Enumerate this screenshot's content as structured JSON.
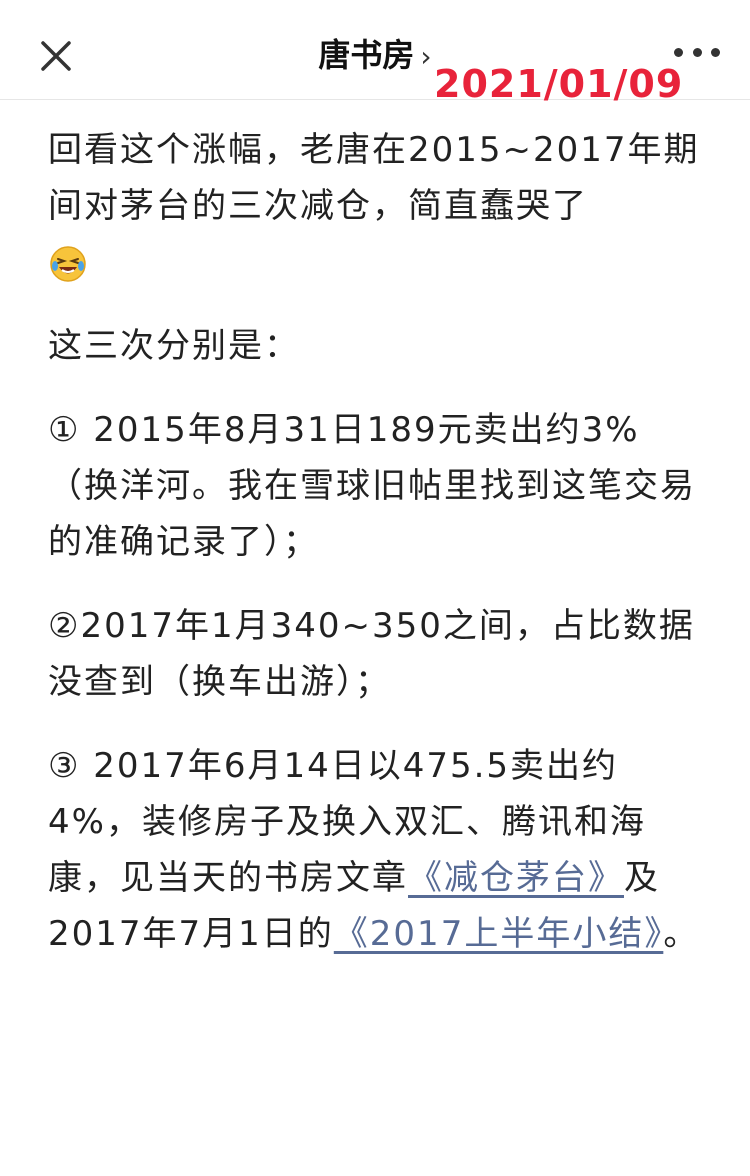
{
  "navbar": {
    "title": "唐书房",
    "chevron": "›",
    "close_icon": "close-icon",
    "more_icon": "more-dots-icon"
  },
  "date_stamp": "2021/01/09",
  "article": {
    "para1": "回看这个涨幅，老唐在2015~2017年期间对茅台的三次减仓，简直蠢哭了",
    "para1_emoji": "laughing-crying-face-icon",
    "para2": "这三次分别是：",
    "para3": "① 2015年8月31日189元卖出约3%（换洋河。我在雪球旧帖里找到这笔交易的准确记录了）；",
    "para4": "②2017年1月340~350之间，占比数据没查到（换车出游）；",
    "para5_text": "③ 2017年6月14日以475.5卖出约4%，装修房子及换入双汇、腾讯和海康，见当天的书房文章",
    "para5_link1": "《减仓茅台》",
    "para5_mid": "及2017年7月1日的",
    "para5_link2": "《2017上半年小结》",
    "para5_end": "。"
  },
  "colors": {
    "link": "#576b95",
    "date_stamp": "#e8233a",
    "text": "#222222"
  }
}
